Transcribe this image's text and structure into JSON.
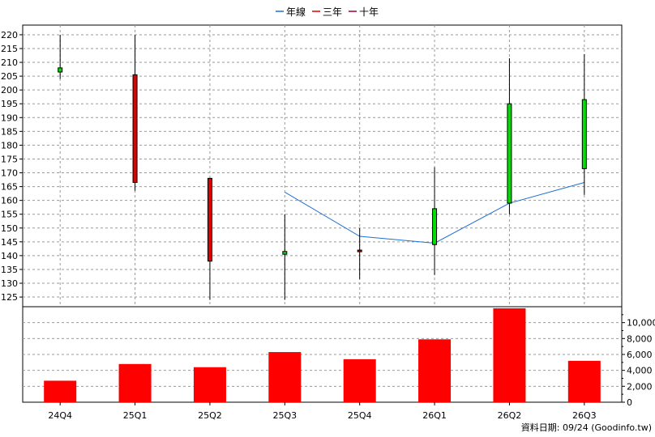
{
  "legend": [
    {
      "label": "年線",
      "color": "#1f6fd0"
    },
    {
      "label": "三年",
      "color": "#e00000"
    },
    {
      "label": "十年",
      "color": "#a00030"
    }
  ],
  "source_note": "資料日期: 09/24  (Goodinfo.tw)",
  "colors": {
    "up": "#00e000",
    "down": "#e00000",
    "volume": "#ff0000",
    "grid": "#9a9a9a",
    "ma": "#1f6fd0"
  },
  "chart_data": [
    {
      "type": "candlestick",
      "categories": [
        "24Q4",
        "25Q1",
        "25Q2",
        "25Q3",
        "25Q4",
        "26Q1",
        "26Q2",
        "26Q3"
      ],
      "open": [
        206.5,
        205.5,
        168,
        140.5,
        142,
        144,
        159,
        171.5
      ],
      "close": [
        208,
        166.5,
        138,
        141.5,
        141.5,
        157,
        195,
        196.5
      ],
      "high": [
        220,
        220,
        168,
        155,
        150,
        172,
        211.5,
        213
      ],
      "low": [
        204,
        163.5,
        124,
        124,
        131.5,
        133,
        155,
        162
      ],
      "series": [
        {
          "name": "年線",
          "values": [
            null,
            null,
            null,
            163,
            147,
            144.5,
            159,
            166.5
          ]
        }
      ],
      "yticks": [
        125,
        130,
        135,
        140,
        145,
        150,
        155,
        160,
        165,
        170,
        175,
        180,
        185,
        190,
        195,
        200,
        205,
        210,
        215,
        220
      ],
      "ylim": [
        121.5,
        223.5
      ],
      "grid": true,
      "legend_position": "top"
    },
    {
      "type": "bar",
      "categories": [
        "24Q4",
        "25Q1",
        "25Q2",
        "25Q3",
        "25Q4",
        "26Q1",
        "26Q2",
        "26Q3"
      ],
      "values": [
        2700,
        4800,
        4400,
        6300,
        5400,
        7900,
        11800,
        5200
      ],
      "yticks": [
        0,
        2000,
        4000,
        6000,
        8000,
        10000
      ],
      "ytick_labels": [
        "0",
        "2,000",
        "4,000",
        "6,000",
        "8,000",
        "10,000"
      ],
      "ylim": [
        0,
        12000
      ],
      "grid": true
    }
  ]
}
